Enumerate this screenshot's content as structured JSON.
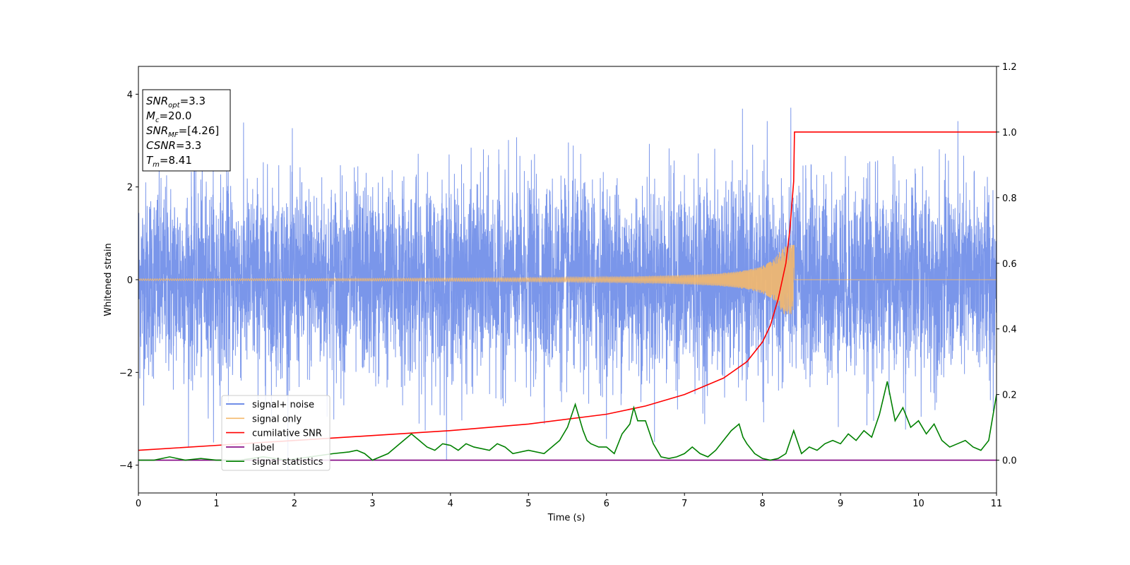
{
  "chart_data": {
    "type": "line",
    "xlabel": "Time (s)",
    "ylabel": "Whitened strain",
    "xlim": [
      0,
      11
    ],
    "ylim_left": [
      -4.6,
      4.6
    ],
    "ylim_right": [
      -0.1,
      1.2
    ],
    "x_ticks": [
      "0",
      "1",
      "2",
      "3",
      "4",
      "5",
      "6",
      "7",
      "8",
      "9",
      "10",
      "11"
    ],
    "x_tick_values": [
      0,
      1,
      2,
      3,
      4,
      5,
      6,
      7,
      8,
      9,
      10,
      11
    ],
    "y_left_ticks": [
      "4",
      "2",
      "0",
      "−2",
      "−4"
    ],
    "y_left_tick_values": [
      4,
      2,
      0,
      -2,
      -4
    ],
    "y_right_ticks": [
      "1.2",
      "1.0",
      "0.8",
      "0.6",
      "0.4",
      "0.2",
      "0.0"
    ],
    "y_right_tick_values": [
      1.2,
      1.0,
      0.8,
      0.6,
      0.4,
      0.2,
      0.0
    ],
    "grid": false,
    "legend_placement": "lower-left",
    "annotation_lines": [
      {
        "label": "SNR",
        "sub": "opt",
        "value": "=3.3"
      },
      {
        "label": "M",
        "sub": "c",
        "value": "=20.0"
      },
      {
        "label": "SNR",
        "sub": "MF",
        "value": "=[4.26]"
      },
      {
        "label": "CSNR",
        "sub": "",
        "value": "=3.3"
      },
      {
        "label": "T",
        "sub": "m",
        "value": "=8.41"
      }
    ],
    "series": [
      {
        "name": "signal+ noise",
        "axis": "left",
        "color": "#4169e1",
        "noise_envelope": {
          "typical_amplitude": 2.3,
          "max_amplitude": 4.2,
          "min_value": -4.1
        }
      },
      {
        "name": "signal only",
        "axis": "left",
        "color": "#f4b86b",
        "chirp": {
          "merger_time": 8.41,
          "start_amplitude": 0.02,
          "peak_amplitude": 0.75
        }
      },
      {
        "name": "cumilative SNR",
        "axis": "right",
        "color": "#ff0000",
        "x": [
          0,
          1,
          2,
          3,
          4,
          5,
          6,
          6.5,
          7,
          7.5,
          7.8,
          8.0,
          8.1,
          8.2,
          8.3,
          8.35,
          8.4,
          8.41,
          8.42,
          9,
          10,
          11
        ],
        "values": [
          0.03,
          0.045,
          0.06,
          0.075,
          0.09,
          0.11,
          0.14,
          0.165,
          0.2,
          0.25,
          0.3,
          0.36,
          0.41,
          0.49,
          0.6,
          0.7,
          0.85,
          1.0,
          1.0,
          1.0,
          1.0,
          1.0
        ]
      },
      {
        "name": "label",
        "axis": "right",
        "color": "#800080",
        "x": [
          0,
          11
        ],
        "values": [
          0,
          0
        ]
      },
      {
        "name": "signal statistics",
        "axis": "right",
        "color": "#008000",
        "x": [
          0,
          0.2,
          0.4,
          0.6,
          0.8,
          1.0,
          1.3,
          1.6,
          1.9,
          2.2,
          2.5,
          2.7,
          2.8,
          2.9,
          3.0,
          3.2,
          3.4,
          3.5,
          3.6,
          3.7,
          3.8,
          3.9,
          4.0,
          4.1,
          4.2,
          4.3,
          4.5,
          4.6,
          4.7,
          4.8,
          5.0,
          5.2,
          5.4,
          5.5,
          5.6,
          5.7,
          5.75,
          5.8,
          5.9,
          6.0,
          6.1,
          6.2,
          6.3,
          6.35,
          6.4,
          6.5,
          6.6,
          6.7,
          6.8,
          6.9,
          7.0,
          7.1,
          7.2,
          7.3,
          7.4,
          7.5,
          7.6,
          7.7,
          7.75,
          7.8,
          7.9,
          8.0,
          8.1,
          8.2,
          8.3,
          8.4,
          8.5,
          8.6,
          8.7,
          8.8,
          8.9,
          9.0,
          9.1,
          9.2,
          9.3,
          9.4,
          9.5,
          9.6,
          9.7,
          9.8,
          9.9,
          10.0,
          10.1,
          10.2,
          10.3,
          10.4,
          10.5,
          10.6,
          10.7,
          10.8,
          10.9,
          11.0
        ],
        "values": [
          0.0,
          0.0,
          0.01,
          0.0,
          0.005,
          0.0,
          0.0,
          0.01,
          0.0,
          0.01,
          0.02,
          0.025,
          0.03,
          0.02,
          0.0,
          0.02,
          0.06,
          0.08,
          0.06,
          0.04,
          0.03,
          0.05,
          0.045,
          0.03,
          0.05,
          0.04,
          0.03,
          0.05,
          0.04,
          0.02,
          0.03,
          0.02,
          0.06,
          0.1,
          0.17,
          0.09,
          0.06,
          0.05,
          0.04,
          0.04,
          0.02,
          0.08,
          0.11,
          0.16,
          0.12,
          0.12,
          0.05,
          0.01,
          0.005,
          0.01,
          0.02,
          0.04,
          0.02,
          0.01,
          0.03,
          0.06,
          0.09,
          0.11,
          0.07,
          0.05,
          0.02,
          0.005,
          0.0,
          0.005,
          0.02,
          0.09,
          0.02,
          0.04,
          0.03,
          0.05,
          0.06,
          0.05,
          0.08,
          0.06,
          0.09,
          0.07,
          0.14,
          0.24,
          0.12,
          0.16,
          0.1,
          0.12,
          0.08,
          0.11,
          0.06,
          0.04,
          0.05,
          0.06,
          0.04,
          0.03,
          0.06,
          0.2
        ]
      }
    ]
  }
}
